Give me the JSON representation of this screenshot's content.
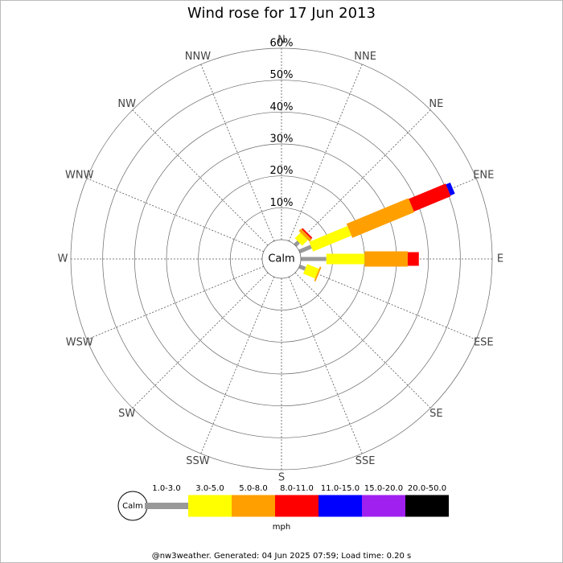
{
  "chart_data": {
    "type": "windrose",
    "title": "Wind rose for 17 Jun 2013",
    "categories": [
      "N",
      "NNE",
      "NE",
      "ENE",
      "E",
      "ESE",
      "SE",
      "SSE",
      "S",
      "SSW",
      "SW",
      "WSW",
      "W",
      "WNW",
      "NW",
      "NNW"
    ],
    "series": [
      {
        "name": "1.0-3.0",
        "color": "#999999",
        "values": [
          0,
          0,
          1.5,
          4,
          8,
          2,
          0,
          0,
          0,
          0,
          0,
          0,
          0,
          0,
          0,
          0
        ]
      },
      {
        "name": "3.0-5.0",
        "color": "#ffff00",
        "values": [
          0,
          0,
          2.5,
          13,
          12,
          4,
          0,
          0,
          0,
          0,
          0,
          0,
          0,
          0,
          0,
          0
        ]
      },
      {
        "name": "5.0-8.0",
        "color": "#ffa000",
        "values": [
          0,
          0,
          1,
          21,
          13.5,
          0.5,
          0,
          0,
          0,
          0,
          0,
          0,
          0,
          0,
          0,
          0
        ]
      },
      {
        "name": "8.0-11.0",
        "color": "#ff0000",
        "values": [
          0,
          0,
          0.5,
          12.5,
          3.5,
          0,
          0,
          0,
          0,
          0,
          0,
          0,
          0,
          0,
          0,
          0
        ]
      },
      {
        "name": "11.0-15.0",
        "color": "#0000ff",
        "values": [
          0,
          0,
          0,
          1.5,
          0,
          0,
          0,
          0,
          0,
          0,
          0,
          0,
          0,
          0,
          0,
          0
        ]
      },
      {
        "name": "15.0-20.0",
        "color": "#a020f0",
        "values": [
          0,
          0,
          0,
          0,
          0,
          0,
          0,
          0,
          0,
          0,
          0,
          0,
          0,
          0,
          0,
          0
        ]
      },
      {
        "name": "20.0-50.0",
        "color": "#000000",
        "values": [
          0,
          0,
          0,
          0,
          0,
          0,
          0,
          0,
          0,
          0,
          0,
          0,
          0,
          0,
          0,
          0
        ]
      }
    ],
    "rlim": [
      0,
      60
    ],
    "rticks": [
      {
        "value": 10,
        "label": "10%"
      },
      {
        "value": 20,
        "label": "20%"
      },
      {
        "value": 30,
        "label": "30%"
      },
      {
        "value": 40,
        "label": "40%"
      },
      {
        "value": 50,
        "label": "50%"
      },
      {
        "value": 60,
        "label": "60%"
      }
    ],
    "calm_label": "Calm",
    "legend_units": "mph",
    "footer": "@nw3weather. Generated: 04 Jun 2025 07:59; Load time: 0.20 s"
  }
}
